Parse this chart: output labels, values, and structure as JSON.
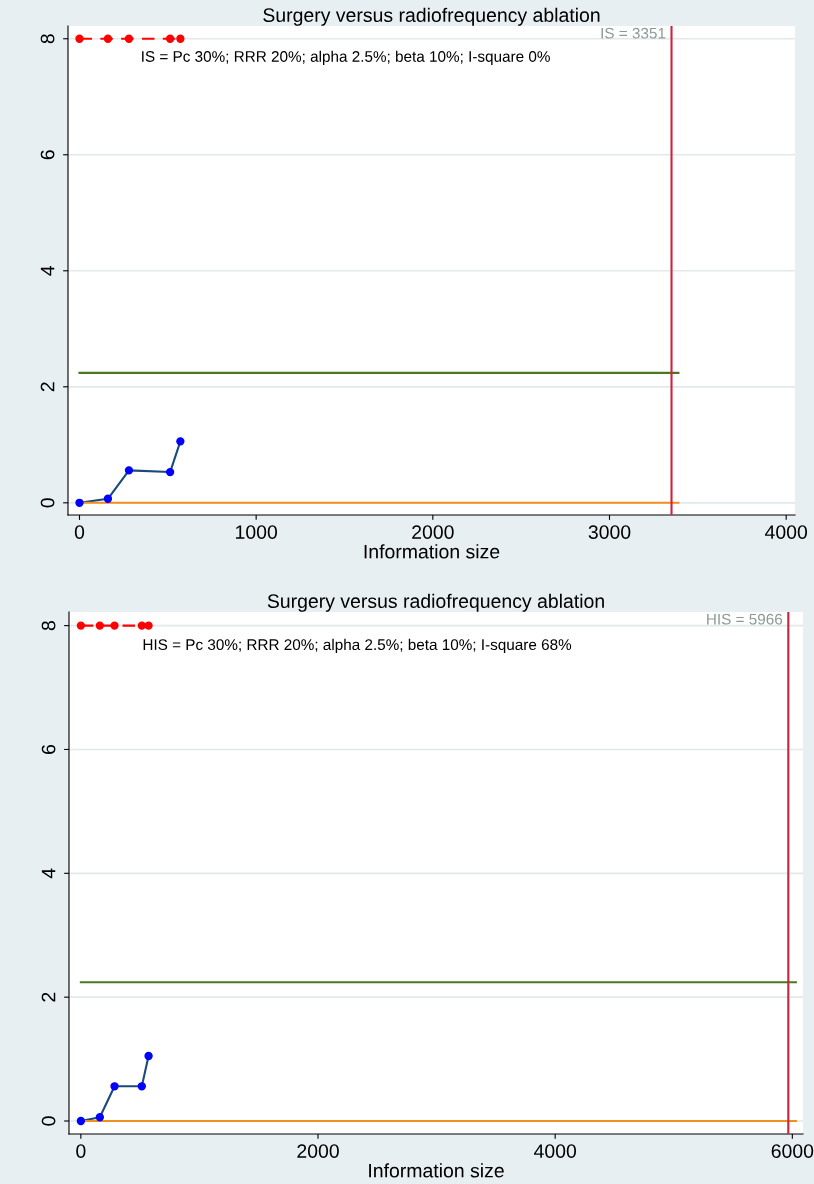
{
  "chart_data": [
    {
      "type": "line",
      "title": "Surgery versus radiofrequency ablation",
      "xlabel": "Information size",
      "xlim": [
        -65,
        4050
      ],
      "ylim": [
        -0.21,
        8.22
      ],
      "xticks": [
        0,
        1000,
        2000,
        3000,
        4000
      ],
      "yticks": [
        0,
        2,
        4,
        6,
        8
      ],
      "grid": "y",
      "legend": false,
      "series": [
        {
          "color": "#ff0000",
          "x": [
            0,
            161,
            280,
            513,
            571
          ],
          "values": [
            8,
            8,
            8,
            8,
            8
          ],
          "marker": "circle",
          "line_style": "dashed"
        },
        {
          "color": "#1a4a7a",
          "x": [
            0,
            161,
            280,
            513,
            571
          ],
          "values": [
            0,
            0.07,
            0.56,
            0.53,
            1.06
          ],
          "marker": "circle",
          "line_style": "solid",
          "colors": [
            "#0000ff",
            "#0000ff",
            "#0000ff",
            "#0000ff",
            "#0000ff"
          ]
        },
        {
          "color": "#4a7a1e",
          "x": [
            0,
            3390
          ],
          "values": [
            2.24,
            2.24
          ],
          "marker": "none",
          "line_style": "solid"
        },
        {
          "color": "#f0901e",
          "x": [
            0,
            3390
          ],
          "values": [
            0,
            0
          ],
          "marker": "none",
          "line_style": "solid"
        }
      ],
      "ref_lines": [
        {
          "axis": "x",
          "value": 3351,
          "label": "IS = 3351",
          "color": "#d0203a"
        }
      ],
      "annotations": [
        "IS = Pc 30%; RRR 20%; alpha 2.5%; beta 10%; I-square 0%"
      ]
    },
    {
      "type": "line",
      "title": "Surgery versus radiofrequency ablation",
      "xlabel": "Information size",
      "xlim": [
        -100,
        6090
      ],
      "ylim": [
        -0.21,
        8.22
      ],
      "xticks": [
        0,
        2000,
        4000,
        6000
      ],
      "yticks": [
        0,
        2,
        4,
        6,
        8
      ],
      "grid": "y",
      "legend": false,
      "series": [
        {
          "color": "#ff0000",
          "x": [
            0,
            160,
            284,
            514,
            571
          ],
          "values": [
            8,
            8,
            8,
            8,
            8
          ],
          "marker": "circle",
          "line_style": "dashed"
        },
        {
          "color": "#1a4a7a",
          "x": [
            0,
            160,
            284,
            514,
            571
          ],
          "values": [
            0,
            0.06,
            0.56,
            0.56,
            1.05
          ],
          "marker": "circle",
          "line_style": "solid",
          "colors": [
            "#0000ff",
            "#0000ff",
            "#0000ff",
            "#0000ff",
            "#0000ff"
          ]
        },
        {
          "color": "#4a7a1e",
          "x": [
            0,
            6030
          ],
          "values": [
            2.24,
            2.24
          ],
          "marker": "none",
          "line_style": "solid"
        },
        {
          "color": "#f0901e",
          "x": [
            0,
            6030
          ],
          "values": [
            0,
            0
          ],
          "marker": "none",
          "line_style": "solid"
        }
      ],
      "ref_lines": [
        {
          "axis": "x",
          "value": 5966,
          "label": "HIS = 5966",
          "color": "#d0203a"
        }
      ],
      "annotations": [
        "HIS = Pc 30%; RRR 20%; alpha 2.5%; beta 10%; I-square 68%"
      ]
    }
  ]
}
